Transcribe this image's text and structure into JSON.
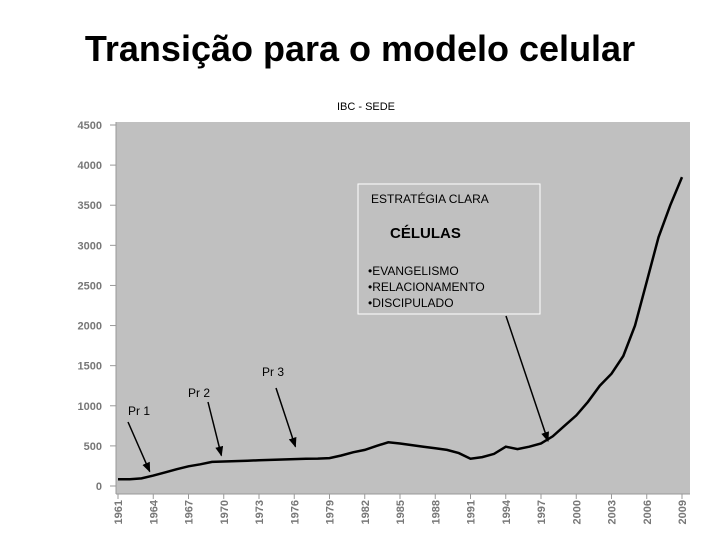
{
  "slide": {
    "title": "Transição para o modelo celular"
  },
  "chart_data": {
    "type": "line",
    "title": "IBC - SEDE",
    "xlabel": "",
    "ylabel": "",
    "ylim": [
      0,
      4500
    ],
    "yticks": [
      0,
      500,
      1000,
      1500,
      2000,
      2500,
      3000,
      3500,
      4000,
      4500
    ],
    "xlim": [
      1961,
      2009
    ],
    "xticks": [
      1961,
      1964,
      1967,
      1970,
      1973,
      1976,
      1979,
      1982,
      1985,
      1988,
      1991,
      1994,
      1997,
      2000,
      2003,
      2006,
      2009
    ],
    "grid": false,
    "background_color": "#c0c0c0",
    "line_color": "#000000",
    "series": [
      {
        "x": [
          1961,
          1962,
          1963,
          1964,
          1965,
          1966,
          1967,
          1968,
          1969,
          1970,
          1971,
          1972,
          1973,
          1974,
          1975,
          1976,
          1977,
          1978,
          1979,
          1980,
          1981,
          1982,
          1983,
          1984,
          1985,
          1986,
          1987,
          1988,
          1989,
          1990,
          1991,
          1992,
          1993,
          1994,
          1995,
          1996,
          1997,
          1998,
          1999,
          2000,
          2001,
          2002,
          2003,
          2004,
          2005,
          2006,
          2007,
          2008,
          2009
        ],
        "values": [
          85,
          85,
          95,
          130,
          170,
          210,
          245,
          270,
          300,
          305,
          310,
          315,
          320,
          325,
          330,
          335,
          340,
          342,
          348,
          380,
          420,
          450,
          500,
          545,
          530,
          510,
          490,
          470,
          450,
          410,
          340,
          360,
          400,
          490,
          460,
          490,
          530,
          620,
          750,
          880,
          1050,
          1250,
          1400,
          1620,
          2000,
          2550,
          3100,
          3500,
          3850
        ]
      }
    ],
    "annotations": [
      {
        "label": "Pr 1",
        "year": 1963.7,
        "value": 180
      },
      {
        "label": "Pr 2",
        "year": 1969.8,
        "value": 380
      },
      {
        "label": "Pr 3",
        "year": 1976.1,
        "value": 490
      }
    ],
    "callout": {
      "heading": "ESTRATÉGIA CLARA",
      "subheading": "CÉLULAS",
      "items": [
        "•EVANGELISMO",
        "•RELACIONAMENTO",
        "•DISCIPULADO"
      ],
      "arrow_target": {
        "year": 1997.6,
        "value": 560
      }
    }
  }
}
